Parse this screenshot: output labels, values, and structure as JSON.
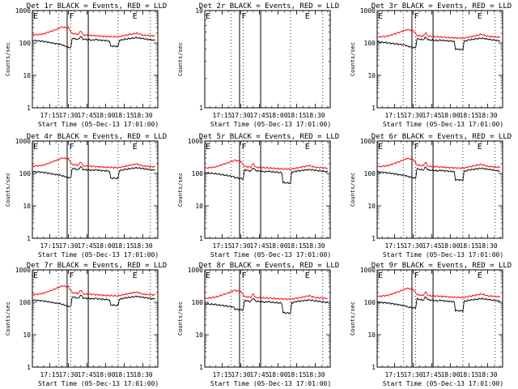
{
  "title_suffix": "BLACK = Events, RED = LLD",
  "ylabel": "Counts/sec",
  "xlabel": "Start Time (05-Dec-13 17:01:00)",
  "x_ticks": [
    "17:15",
    "17:30",
    "17:45",
    "18:00",
    "18:15",
    "18:30"
  ],
  "y_ticks": [
    "1",
    "10",
    "100",
    "1000"
  ],
  "colors": {
    "events": "#000000",
    "lld": "#ff0000",
    "marker": "#000000"
  },
  "chart_data": [
    {
      "type": "line",
      "title": "Det 1r BLACK = Events, RED = LLD",
      "detector": "Det 1r",
      "ylim": [
        1,
        1000
      ],
      "y_scale": "log",
      "markers": [
        {
          "label": "E",
          "time": "17:01"
        },
        {
          "label": "F",
          "time": "17:30"
        },
        {
          "label": "E",
          "time": "18:21"
        }
      ],
      "series": [
        {
          "name": "BLACK = Events",
          "time": [
            "17:01",
            "17:10",
            "17:20",
            "17:24",
            "17:25",
            "17:32",
            "17:33",
            "17:38",
            "17:40",
            "17:42",
            "17:50",
            "17:52",
            "17:55",
            "18:00",
            "18:03",
            "18:04",
            "18:10",
            "18:11",
            "18:15",
            "18:25",
            "18:40"
          ],
          "values": [
            120,
            112,
            95,
            90,
            86,
            70,
            140,
            128,
            160,
            130,
            122,
            128,
            122,
            118,
            116,
            80,
            78,
            118,
            130,
            145,
            120
          ]
        },
        {
          "name": "RED = LLD",
          "time": [
            "17:01",
            "17:10",
            "17:20",
            "17:25",
            "17:30",
            "17:33",
            "17:38",
            "17:40",
            "17:42",
            "17:50",
            "18:00",
            "18:10",
            "18:20",
            "18:25",
            "18:30",
            "18:40"
          ],
          "values": [
            175,
            190,
            260,
            310,
            290,
            195,
            185,
            240,
            175,
            170,
            158,
            155,
            185,
            200,
            175,
            165
          ]
        }
      ]
    },
    {
      "type": "line",
      "title": "Det 2r BLACK = Events, RED = LLD",
      "detector": "Det 2r",
      "ylim": [
        1,
        10
      ],
      "y_scale": "log",
      "markers": [
        {
          "label": "E",
          "time": "17:01"
        },
        {
          "label": "F",
          "time": "17:30"
        },
        {
          "label": "E",
          "time": "18:21"
        }
      ],
      "series": []
    },
    {
      "type": "line",
      "title": "Det 3r BLACK = Events, RED = LLD",
      "detector": "Det 3r",
      "ylim": [
        1,
        1000
      ],
      "y_scale": "log",
      "markers": [
        {
          "label": "E",
          "time": "17:01"
        },
        {
          "label": "F",
          "time": "17:30"
        },
        {
          "label": "E",
          "time": "18:21"
        }
      ],
      "series": [
        {
          "name": "BLACK = Events",
          "time": [
            "17:01",
            "17:10",
            "17:20",
            "17:24",
            "17:25",
            "17:32",
            "17:33",
            "17:38",
            "17:40",
            "17:42",
            "17:50",
            "17:52",
            "17:55",
            "18:00",
            "18:03",
            "18:04",
            "18:10",
            "18:11",
            "18:15",
            "18:25",
            "18:40"
          ],
          "values": [
            110,
            100,
            90,
            85,
            80,
            70,
            135,
            125,
            150,
            125,
            118,
            122,
            118,
            115,
            112,
            65,
            62,
            112,
            125,
            140,
            115
          ]
        },
        {
          "name": "RED = LLD",
          "time": [
            "17:01",
            "17:10",
            "17:20",
            "17:25",
            "17:30",
            "17:33",
            "17:38",
            "17:40",
            "17:42",
            "17:50",
            "18:00",
            "18:10",
            "18:20",
            "18:25",
            "18:30",
            "18:40"
          ],
          "values": [
            150,
            165,
            220,
            260,
            240,
            170,
            160,
            210,
            160,
            155,
            145,
            140,
            165,
            185,
            160,
            150
          ]
        }
      ]
    },
    {
      "type": "line",
      "title": "Det 4r BLACK = Events, RED = LLD",
      "detector": "Det 4r",
      "ylim": [
        1,
        1000
      ],
      "y_scale": "log",
      "markers": [
        {
          "label": "E",
          "time": "17:01"
        },
        {
          "label": "F",
          "time": "17:30"
        },
        {
          "label": "E",
          "time": "18:21"
        }
      ],
      "series": [
        {
          "name": "BLACK = Events",
          "time": [
            "17:01",
            "17:10",
            "17:20",
            "17:24",
            "17:25",
            "17:32",
            "17:33",
            "17:38",
            "17:40",
            "17:42",
            "17:50",
            "17:52",
            "17:55",
            "18:00",
            "18:03",
            "18:04",
            "18:10",
            "18:11",
            "18:15",
            "18:25",
            "18:40"
          ],
          "values": [
            115,
            108,
            92,
            88,
            84,
            72,
            145,
            130,
            165,
            132,
            125,
            130,
            124,
            120,
            118,
            72,
            70,
            120,
            132,
            150,
            125
          ]
        },
        {
          "name": "RED = LLD",
          "time": [
            "17:01",
            "17:10",
            "17:20",
            "17:25",
            "17:30",
            "17:33",
            "17:38",
            "17:40",
            "17:42",
            "17:50",
            "18:00",
            "18:10",
            "18:20",
            "18:25",
            "18:30",
            "18:40"
          ],
          "values": [
            165,
            180,
            250,
            300,
            280,
            190,
            180,
            230,
            170,
            165,
            155,
            150,
            180,
            195,
            170,
            160
          ]
        }
      ]
    },
    {
      "type": "line",
      "title": "Det 5r BLACK = Events, RED = LLD",
      "detector": "Det 5r",
      "ylim": [
        1,
        1000
      ],
      "y_scale": "log",
      "markers": [
        {
          "label": "E",
          "time": "17:01"
        },
        {
          "label": "F",
          "time": "17:30"
        },
        {
          "label": "E",
          "time": "18:21"
        }
      ],
      "series": [
        {
          "name": "BLACK = Events",
          "time": [
            "17:01",
            "17:10",
            "17:20",
            "17:24",
            "17:25",
            "17:32",
            "17:33",
            "17:38",
            "17:40",
            "17:42",
            "17:50",
            "17:52",
            "17:55",
            "18:00",
            "18:03",
            "18:04",
            "18:10",
            "18:11",
            "18:15",
            "18:25",
            "18:40"
          ],
          "values": [
            105,
            98,
            85,
            80,
            75,
            68,
            130,
            118,
            150,
            122,
            112,
            118,
            112,
            108,
            105,
            52,
            50,
            108,
            118,
            132,
            112
          ]
        },
        {
          "name": "RED = LLD",
          "time": [
            "17:01",
            "17:10",
            "17:20",
            "17:25",
            "17:30",
            "17:33",
            "17:38",
            "17:40",
            "17:42",
            "17:50",
            "18:00",
            "18:10",
            "18:20",
            "18:25",
            "18:30",
            "18:40"
          ],
          "values": [
            145,
            160,
            215,
            255,
            235,
            165,
            155,
            205,
            155,
            150,
            140,
            135,
            160,
            175,
            155,
            145
          ]
        }
      ]
    },
    {
      "type": "line",
      "title": "Det 6r BLACK = Events, RED = LLD",
      "detector": "Det 6r",
      "ylim": [
        1,
        1000
      ],
      "y_scale": "log",
      "markers": [
        {
          "label": "E",
          "time": "17:01"
        },
        {
          "label": "F",
          "time": "17:30"
        },
        {
          "label": "E",
          "time": "18:21"
        }
      ],
      "series": [
        {
          "name": "BLACK = Events",
          "time": [
            "17:01",
            "17:10",
            "17:20",
            "17:24",
            "17:25",
            "17:32",
            "17:33",
            "17:38",
            "17:40",
            "17:42",
            "17:50",
            "17:52",
            "17:55",
            "18:00",
            "18:03",
            "18:04",
            "18:10",
            "18:11",
            "18:15",
            "18:25",
            "18:40"
          ],
          "values": [
            112,
            104,
            90,
            86,
            82,
            70,
            140,
            126,
            158,
            128,
            120,
            125,
            120,
            116,
            114,
            64,
            62,
            116,
            128,
            144,
            118
          ]
        },
        {
          "name": "RED = LLD",
          "time": [
            "17:01",
            "17:10",
            "17:20",
            "17:25",
            "17:30",
            "17:33",
            "17:38",
            "17:40",
            "17:42",
            "17:50",
            "18:00",
            "18:10",
            "18:20",
            "18:25",
            "18:30",
            "18:40"
          ],
          "values": [
            160,
            175,
            240,
            290,
            270,
            182,
            172,
            222,
            165,
            160,
            150,
            145,
            175,
            190,
            165,
            155
          ]
        }
      ]
    },
    {
      "type": "line",
      "title": "Det 7r BLACK = Events, RED = LLD",
      "detector": "Det 7r",
      "ylim": [
        1,
        1000
      ],
      "y_scale": "log",
      "markers": [
        {
          "label": "E",
          "time": "17:01"
        },
        {
          "label": "F",
          "time": "17:30"
        },
        {
          "label": "E",
          "time": "18:21"
        }
      ],
      "series": [
        {
          "name": "BLACK = Events",
          "time": [
            "17:01",
            "17:10",
            "17:20",
            "17:24",
            "17:25",
            "17:32",
            "17:33",
            "17:38",
            "17:40",
            "17:42",
            "17:50",
            "17:52",
            "17:55",
            "18:00",
            "18:03",
            "18:04",
            "18:10",
            "18:11",
            "18:15",
            "18:25",
            "18:40"
          ],
          "values": [
            118,
            110,
            94,
            90,
            86,
            72,
            148,
            132,
            168,
            135,
            128,
            132,
            126,
            122,
            120,
            82,
            80,
            122,
            135,
            152,
            125
          ]
        },
        {
          "name": "RED = LLD",
          "time": [
            "17:01",
            "17:10",
            "17:20",
            "17:25",
            "17:30",
            "17:33",
            "17:38",
            "17:40",
            "17:42",
            "17:50",
            "18:00",
            "18:10",
            "18:20",
            "18:25",
            "18:30",
            "18:40"
          ],
          "values": [
            170,
            190,
            265,
            320,
            300,
            200,
            188,
            245,
            180,
            175,
            162,
            158,
            190,
            205,
            178,
            168
          ]
        }
      ]
    },
    {
      "type": "line",
      "title": "Det 8r BLACK = Events, RED = LLD",
      "detector": "Det 8r",
      "ylim": [
        1,
        1000
      ],
      "y_scale": "log",
      "markers": [
        {
          "label": "E",
          "time": "17:01"
        },
        {
          "label": "F",
          "time": "17:30"
        },
        {
          "label": "E",
          "time": "18:21"
        }
      ],
      "series": [
        {
          "name": "BLACK = Events",
          "time": [
            "17:01",
            "17:10",
            "17:20",
            "17:24",
            "17:25",
            "17:32",
            "17:33",
            "17:38",
            "17:40",
            "17:42",
            "17:50",
            "17:52",
            "17:55",
            "18:00",
            "18:03",
            "18:04",
            "18:10",
            "18:11",
            "18:15",
            "18:25",
            "18:40"
          ],
          "values": [
            90,
            85,
            75,
            72,
            62,
            58,
            115,
            105,
            135,
            108,
            100,
            105,
            100,
            96,
            94,
            48,
            46,
            96,
            106,
            118,
            98
          ]
        },
        {
          "name": "RED = LLD",
          "time": [
            "17:01",
            "17:10",
            "17:20",
            "17:25",
            "17:30",
            "17:33",
            "17:38",
            "17:40",
            "17:42",
            "17:50",
            "18:00",
            "18:10",
            "18:20",
            "18:25",
            "18:30",
            "18:40"
          ],
          "values": [
            130,
            145,
            195,
            235,
            215,
            150,
            142,
            185,
            140,
            136,
            128,
            124,
            145,
            160,
            140,
            132
          ]
        }
      ]
    },
    {
      "type": "line",
      "title": "Det 9r BLACK = Events, RED = LLD",
      "detector": "Det 9r",
      "ylim": [
        1,
        1000
      ],
      "y_scale": "log",
      "markers": [
        {
          "label": "E",
          "time": "17:01"
        },
        {
          "label": "F",
          "time": "17:30"
        },
        {
          "label": "E",
          "time": "18:21"
        }
      ],
      "series": [
        {
          "name": "BLACK = Events",
          "time": [
            "17:01",
            "17:10",
            "17:20",
            "17:24",
            "17:25",
            "17:32",
            "17:33",
            "17:38",
            "17:40",
            "17:42",
            "17:50",
            "17:52",
            "17:55",
            "18:00",
            "18:03",
            "18:04",
            "18:10",
            "18:11",
            "18:15",
            "18:25",
            "18:40"
          ],
          "values": [
            100,
            95,
            82,
            78,
            72,
            66,
            128,
            116,
            148,
            120,
            110,
            116,
            110,
            106,
            104,
            56,
            54,
            106,
            116,
            130,
            108
          ]
        },
        {
          "name": "RED = LLD",
          "time": [
            "17:01",
            "17:10",
            "17:20",
            "17:25",
            "17:30",
            "17:33",
            "17:38",
            "17:40",
            "17:42",
            "17:50",
            "18:00",
            "18:10",
            "18:20",
            "18:25",
            "18:30",
            "18:40"
          ],
          "values": [
            150,
            165,
            225,
            270,
            250,
            172,
            162,
            212,
            160,
            155,
            145,
            140,
            165,
            180,
            158,
            148
          ]
        }
      ]
    }
  ]
}
